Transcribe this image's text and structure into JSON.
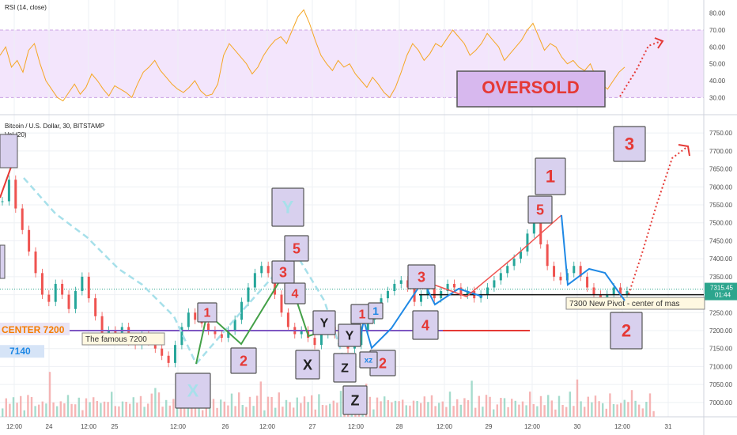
{
  "chart_data": [
    {
      "type": "line",
      "title": "RSI (14, close)",
      "ylim": [
        25,
        85
      ],
      "y_ticks": [
        "80.00",
        "70.00",
        "60.00",
        "50.00",
        "40.00",
        "30.00"
      ],
      "y_tick_values": [
        80,
        70,
        60,
        50,
        40,
        30
      ],
      "overbought": 70,
      "oversold": 30,
      "series": [
        {
          "values": [
            55,
            60,
            48,
            52,
            45,
            58,
            62,
            50,
            40,
            35,
            30,
            28,
            33,
            38,
            32,
            36,
            44,
            40,
            35,
            31,
            37,
            35,
            33,
            30,
            38,
            45,
            48,
            52,
            46,
            42,
            38,
            35,
            33,
            36,
            40,
            34,
            31,
            32,
            38,
            55,
            62,
            58,
            54,
            50,
            44,
            48,
            55,
            60,
            64,
            66,
            62,
            70,
            78,
            82,
            74,
            64,
            55,
            50,
            46,
            52,
            48,
            50,
            44,
            40,
            36,
            42,
            38,
            33,
            30,
            36,
            45,
            55,
            62,
            58,
            52,
            56,
            62,
            60,
            65,
            70,
            66,
            62,
            55,
            58,
            62,
            68,
            64,
            60,
            52,
            56,
            60,
            64,
            70,
            74,
            66,
            58,
            62,
            60,
            54,
            50,
            52,
            48,
            46,
            50,
            42,
            38,
            35,
            40,
            45,
            48
          ]
        }
      ],
      "annotations": [
        {
          "label": "OVERSOLD",
          "kind": "label-box"
        }
      ],
      "colors": {
        "line": "#f5a623",
        "band": "#f3e5fc"
      }
    },
    {
      "type": "candlestick",
      "title": "Bitcoin / U.S. Dollar, 30, BITSTAMP",
      "subtitle": "Vol (20)",
      "ylim": [
        6960,
        7790
      ],
      "y_ticks": [
        "7750.00",
        "7700.00",
        "7650.00",
        "7600.00",
        "7550.00",
        "7500.00",
        "7450.00",
        "7400.00",
        "7350.00",
        "7300.00",
        "7250.00",
        "7200.00",
        "7150.00",
        "7100.00",
        "7050.00",
        "7000.00"
      ],
      "y_tick_values": [
        7750,
        7700,
        7650,
        7600,
        7550,
        7500,
        7450,
        7400,
        7350,
        7300,
        7250,
        7200,
        7150,
        7100,
        7050,
        7000
      ],
      "x_ticks": [
        "12:00",
        "24",
        "12:00",
        "25",
        "12:00",
        "26",
        "12:00",
        "27",
        "12:00",
        "28",
        "12:00",
        "29",
        "12:00",
        "30",
        "12:00",
        "31"
      ],
      "last_price": "7315.45",
      "countdown": "01:44",
      "close_series": [
        7560,
        7620,
        7540,
        7480,
        7420,
        7360,
        7300,
        7280,
        7330,
        7300,
        7260,
        7310,
        7350,
        7290,
        7240,
        7190,
        7200,
        7180,
        7210,
        7170,
        7160,
        7190,
        7170,
        7150,
        7130,
        7110,
        7160,
        7210,
        7250,
        7230,
        7220,
        7200,
        7190,
        7180,
        7200,
        7230,
        7280,
        7320,
        7360,
        7380,
        7360,
        7300,
        7250,
        7210,
        7190,
        7200,
        7180,
        7160,
        7190,
        7210,
        7190,
        7170,
        7150,
        7160,
        7200,
        7230,
        7260,
        7290,
        7310,
        7330,
        7340,
        7320,
        7280,
        7300,
        7320,
        7290,
        7310,
        7330,
        7320,
        7300,
        7310,
        7290,
        7300,
        7320,
        7340,
        7360,
        7380,
        7400,
        7420,
        7470,
        7520,
        7440,
        7380,
        7350,
        7340,
        7360,
        7380,
        7350,
        7320,
        7300,
        7280,
        7300,
        7320,
        7300,
        7310
      ],
      "levels": [
        {
          "label": "CENTER 7200",
          "value": 7200
        },
        {
          "label": "7140",
          "value": 7140
        },
        {
          "label": "The famous 7200",
          "value": 7200
        },
        {
          "label": "7300 New Pivot - center of mas",
          "value": 7300
        }
      ],
      "wave_labels": [
        "1",
        "2",
        "3",
        "4",
        "5",
        "X",
        "Y",
        "Z",
        "1",
        "2",
        "3",
        "4",
        "5",
        "1",
        "2",
        "3",
        "X",
        "Y",
        "Z",
        "xz",
        "1",
        "2"
      ]
    }
  ]
}
